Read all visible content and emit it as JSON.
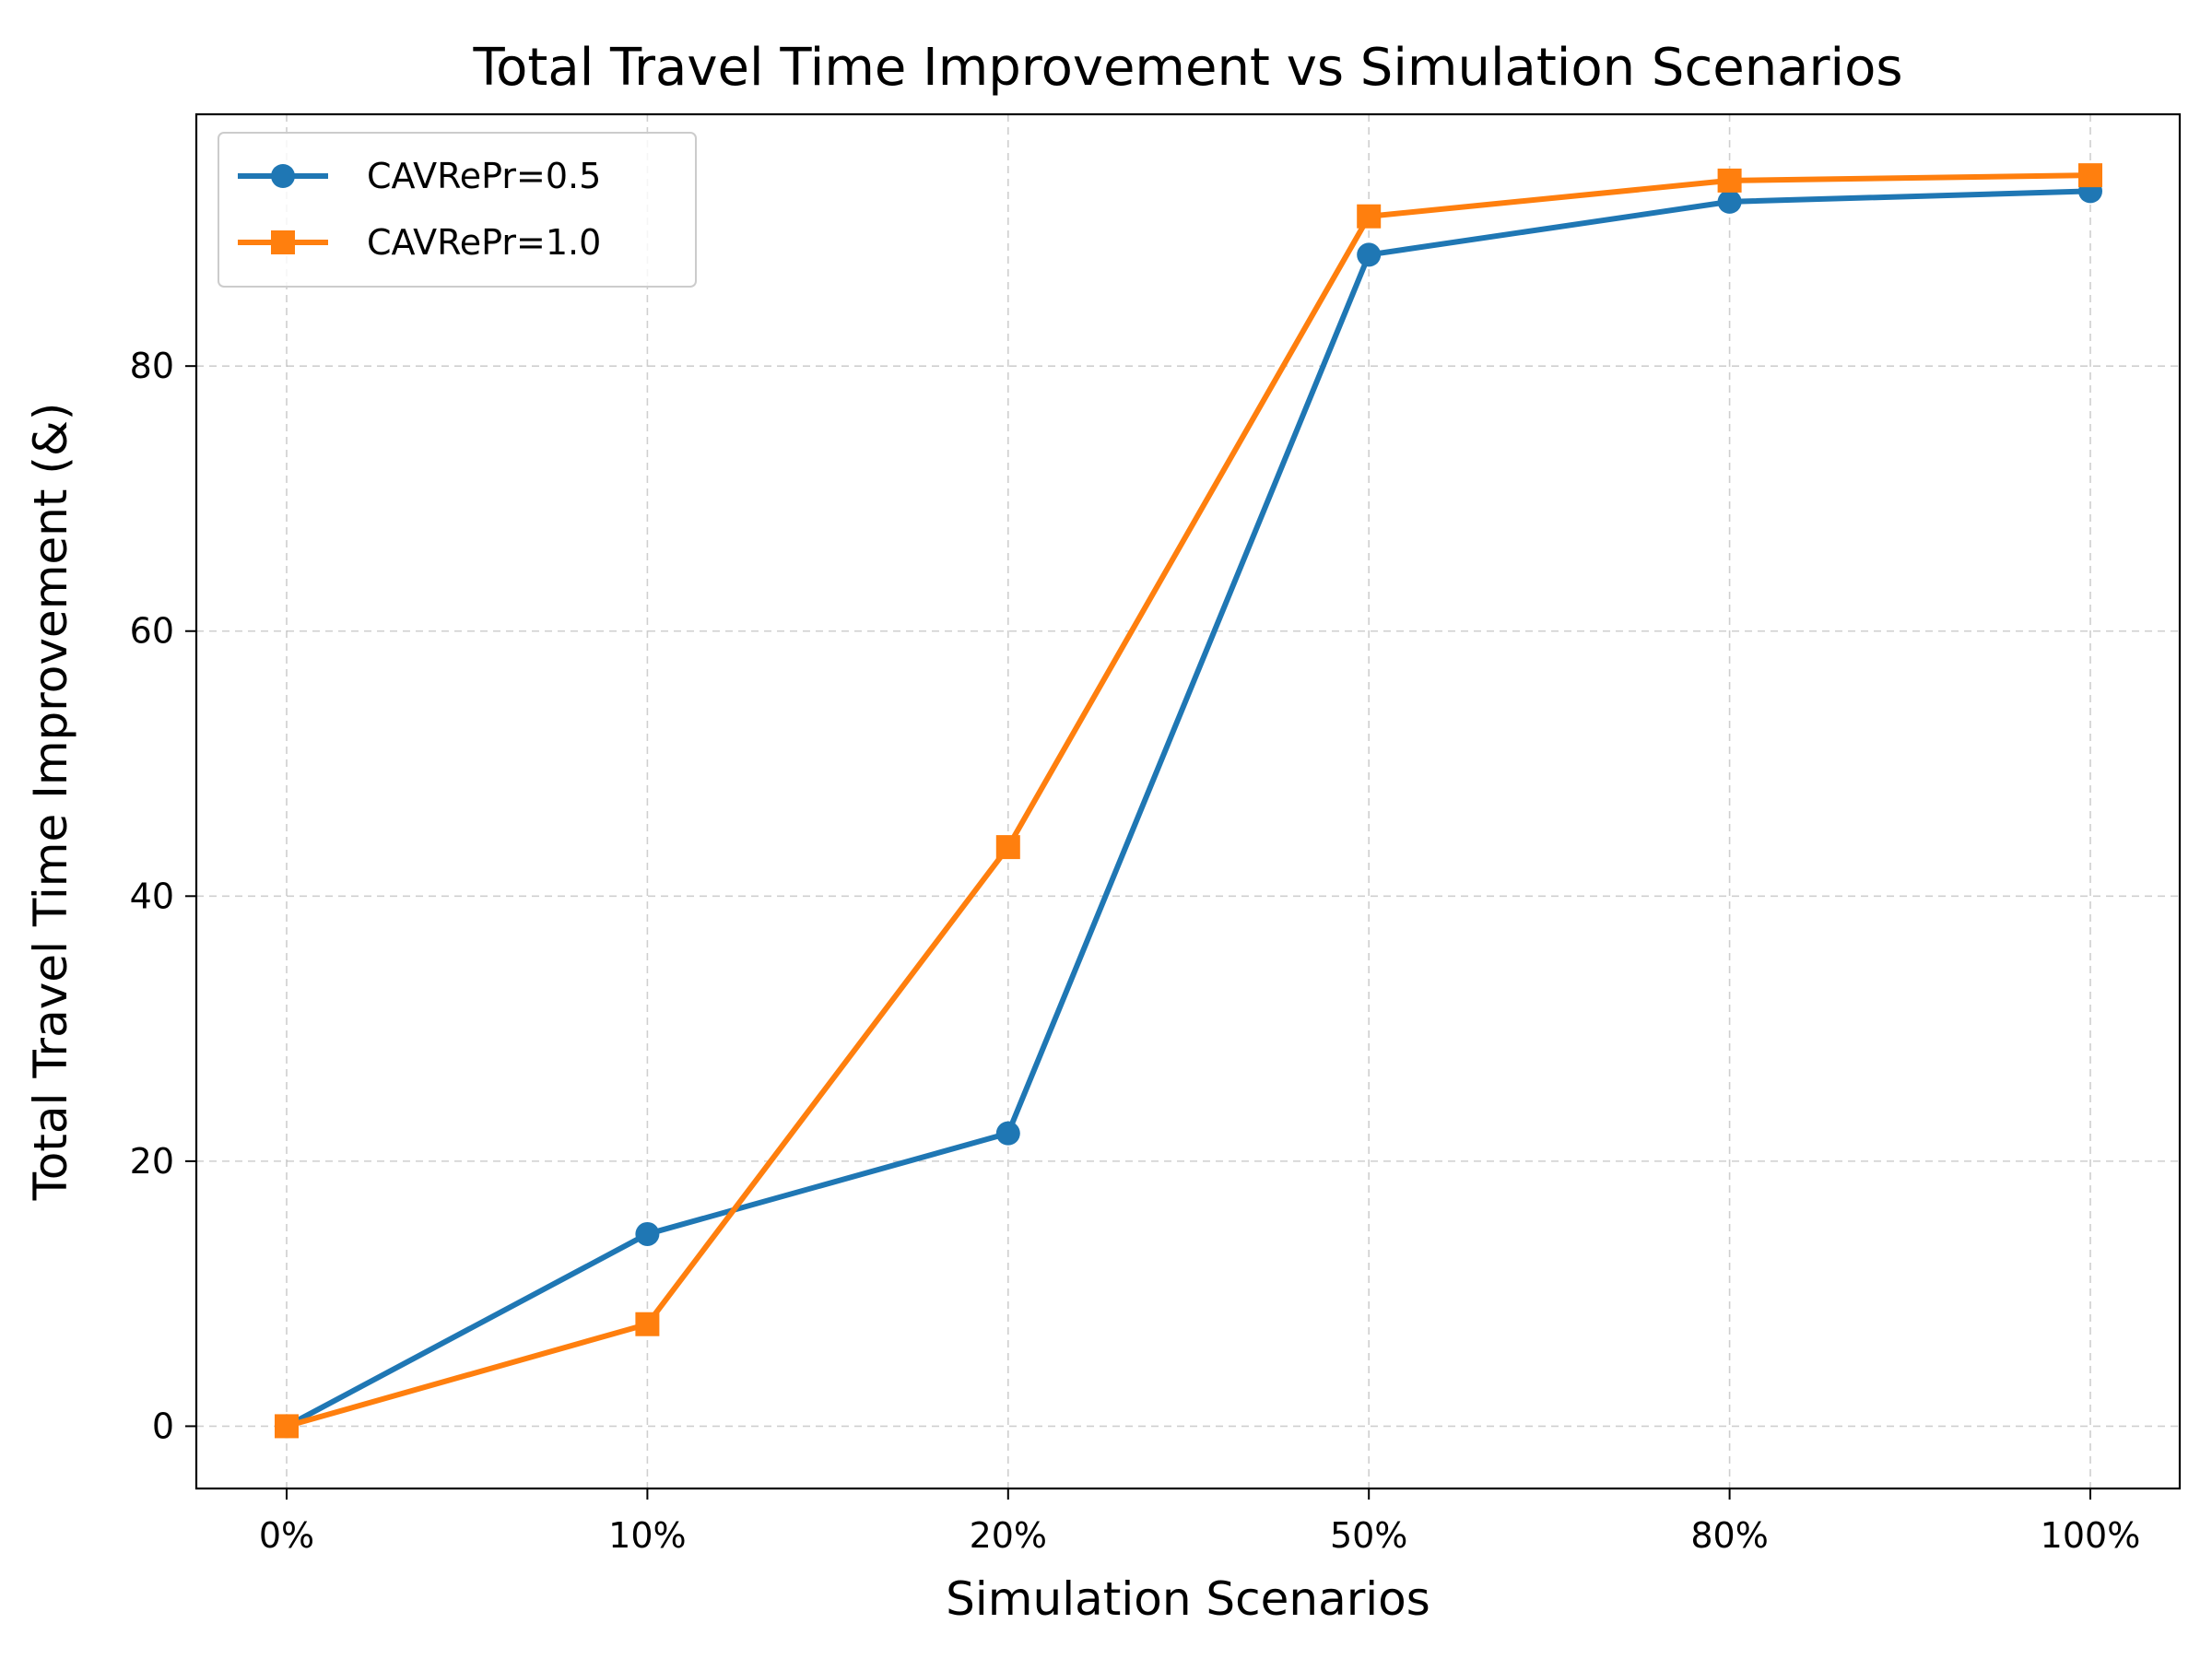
{
  "chart_data": {
    "type": "line",
    "title": "Total Travel Time Improvement vs Simulation Scenarios",
    "xlabel": "Simulation Scenarios",
    "ylabel": "Total Travel Time Improvement (&)",
    "categories": [
      "0%",
      "10%",
      "20%",
      "50%",
      "80%",
      "100%"
    ],
    "ylim": [
      -4.7,
      99
    ],
    "yticks": [
      0,
      20,
      40,
      60,
      80
    ],
    "grid": true,
    "legend_position": "top-left",
    "series": [
      {
        "name": "CAVRePr=0.5",
        "color": "#1f77b4",
        "marker": "circle",
        "values": [
          0,
          14.5,
          22.1,
          88.4,
          92.4,
          93.2
        ]
      },
      {
        "name": "CAVRePr=1.0",
        "color": "#ff7f0e",
        "marker": "square",
        "values": [
          0,
          7.7,
          43.7,
          91.3,
          94.0,
          94.4
        ]
      }
    ]
  }
}
